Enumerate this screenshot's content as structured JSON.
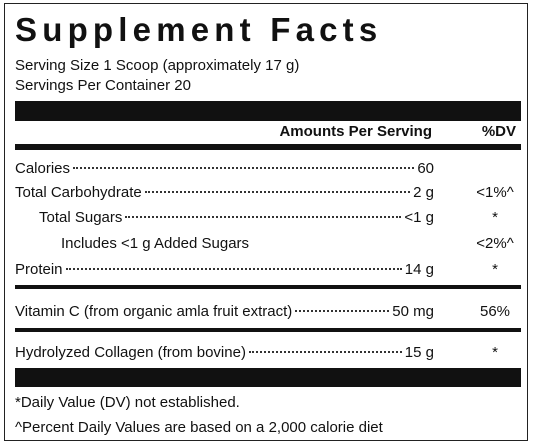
{
  "title": "Supplement Facts",
  "serving": [
    "Serving Size 1 Scoop (approximately 17 g)",
    "Servings Per Container 20"
  ],
  "header": {
    "amount": "Amounts Per Serving",
    "dv": "%DV"
  },
  "rows": [
    {
      "name": "Calories",
      "amount": "60"
    },
    {
      "name": "Total Carbohydrate",
      "amount": "2 g",
      "dv": "<1%^"
    },
    {
      "name": "Total Sugars",
      "amount": "<1 g",
      "dv": "*"
    },
    {
      "name": "Includes <1 g Added Sugars",
      "dv": "<2%^"
    },
    {
      "name": "Protein",
      "amount": "14 g",
      "dv": "*"
    },
    {
      "name": "Vitamin C (from organic amla fruit extract)",
      "amount": "50 mg",
      "dv": "56%"
    },
    {
      "name": "Hydrolyzed Collagen (from bovine)",
      "amount": "15 g",
      "dv": "*"
    }
  ],
  "footnotes": [
    "*Daily Value (DV) not established.",
    "^Percent Daily Values are based on a 2,000 calorie diet"
  ]
}
